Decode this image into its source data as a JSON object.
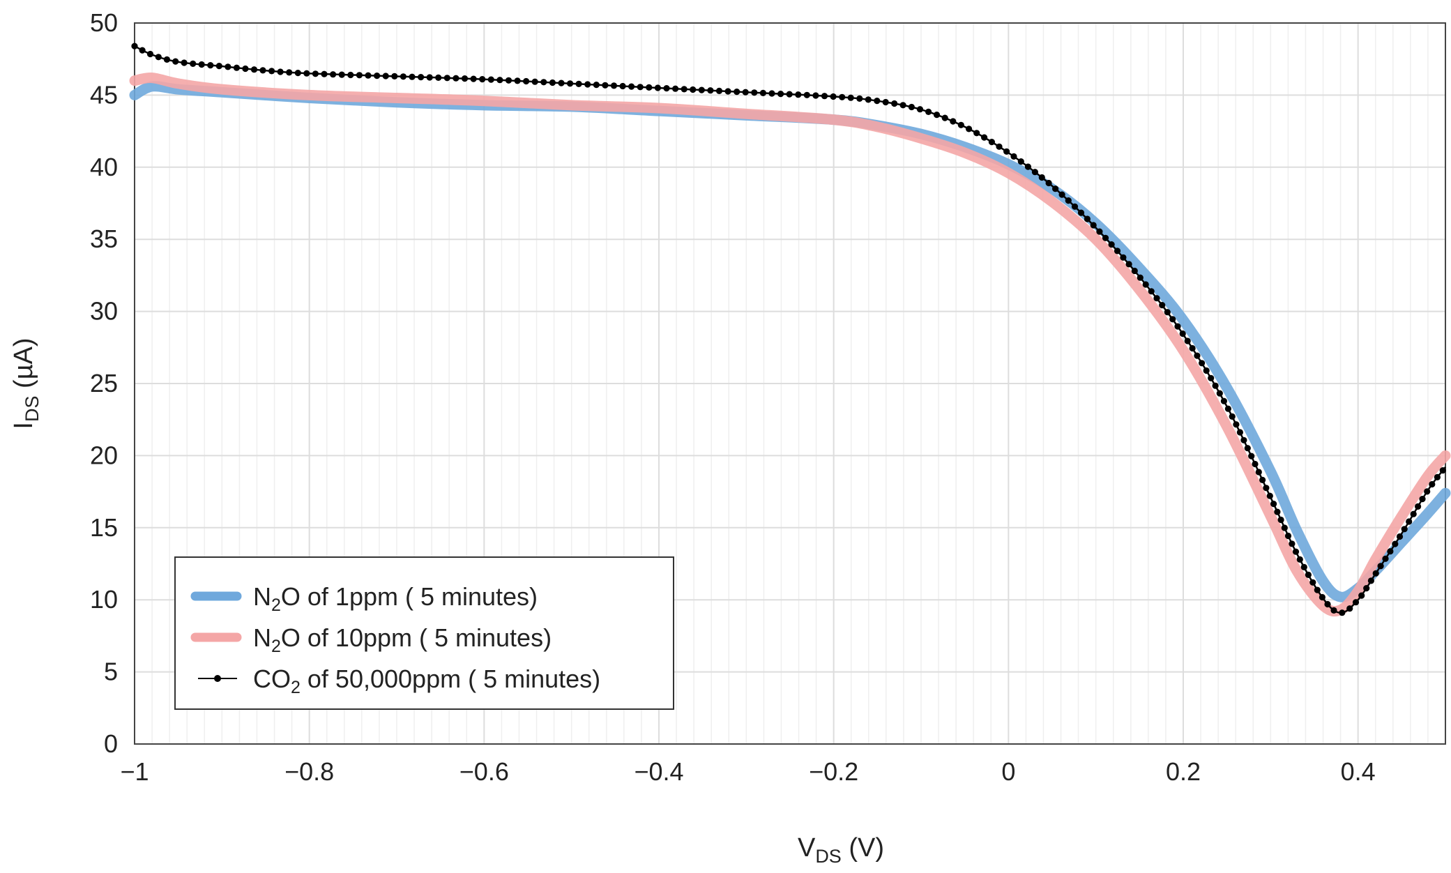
{
  "chart_data": {
    "type": "line",
    "xlabel": {
      "main": "V",
      "sub": "DS",
      "rest": " (V)"
    },
    "ylabel": {
      "main": "I",
      "sub": "DS",
      "rest": " (µA)"
    },
    "xlim": [
      -1,
      0.5
    ],
    "ylim": [
      0,
      50
    ],
    "x_ticks": [
      -1,
      -0.8,
      -0.6,
      -0.4,
      -0.2,
      0,
      0.2,
      0.4
    ],
    "x_tick_labels": [
      "−1",
      "−0.8",
      "−0.6",
      "−0.4",
      "−0.2",
      "0",
      "0.2",
      "0.4"
    ],
    "y_ticks": [
      0,
      5,
      10,
      15,
      20,
      25,
      30,
      35,
      40,
      45,
      50
    ],
    "y_tick_labels": [
      "0",
      "5",
      "10",
      "15",
      "20",
      "25",
      "30",
      "35",
      "40",
      "45",
      "50"
    ],
    "x_minor_step": 0.02,
    "grid": true,
    "legend_position": "lower-left",
    "series": [
      {
        "name": "N2O of 1ppm (5 minutes)",
        "legend": {
          "pre": "N",
          "sub": "2",
          "post": "O of 1ppm   (  5  minutes)"
        },
        "color": "#6fa8dc",
        "style": "thick",
        "points": [
          [
            -1,
            45.0
          ],
          [
            -0.98,
            45.6
          ],
          [
            -0.95,
            45.4
          ],
          [
            -0.9,
            45.2
          ],
          [
            -0.8,
            44.8
          ],
          [
            -0.7,
            44.5
          ],
          [
            -0.6,
            44.3
          ],
          [
            -0.5,
            44.2
          ],
          [
            -0.4,
            43.9
          ],
          [
            -0.3,
            43.6
          ],
          [
            -0.2,
            43.3
          ],
          [
            -0.15,
            42.9
          ],
          [
            -0.1,
            42.3
          ],
          [
            -0.05,
            41.4
          ],
          [
            0,
            40.2
          ],
          [
            0.05,
            38.5
          ],
          [
            0.1,
            36.1
          ],
          [
            0.15,
            33.0
          ],
          [
            0.2,
            29.4
          ],
          [
            0.25,
            24.7
          ],
          [
            0.3,
            18.9
          ],
          [
            0.33,
            14.8
          ],
          [
            0.36,
            11.3
          ],
          [
            0.38,
            10.2
          ],
          [
            0.4,
            10.8
          ],
          [
            0.42,
            12.0
          ],
          [
            0.45,
            14.0
          ],
          [
            0.48,
            16.0
          ],
          [
            0.5,
            17.4
          ]
        ]
      },
      {
        "name": "N2O of 10ppm (5 minutes)",
        "legend": {
          "pre": "N",
          "sub": "2",
          "post": "O of 10ppm (  5  minutes)"
        },
        "color": "#f4a6a6",
        "style": "thick",
        "points": [
          [
            -1,
            46.0
          ],
          [
            -0.98,
            46.2
          ],
          [
            -0.95,
            45.8
          ],
          [
            -0.9,
            45.4
          ],
          [
            -0.8,
            45.0
          ],
          [
            -0.7,
            44.8
          ],
          [
            -0.6,
            44.6
          ],
          [
            -0.5,
            44.3
          ],
          [
            -0.4,
            44.1
          ],
          [
            -0.3,
            43.7
          ],
          [
            -0.2,
            43.3
          ],
          [
            -0.15,
            42.8
          ],
          [
            -0.1,
            42.0
          ],
          [
            -0.05,
            41.0
          ],
          [
            0,
            39.6
          ],
          [
            0.05,
            37.6
          ],
          [
            0.1,
            35.0
          ],
          [
            0.15,
            31.5
          ],
          [
            0.2,
            27.3
          ],
          [
            0.25,
            22.0
          ],
          [
            0.3,
            15.8
          ],
          [
            0.33,
            12.0
          ],
          [
            0.36,
            9.6
          ],
          [
            0.38,
            9.3
          ],
          [
            0.4,
            10.6
          ],
          [
            0.42,
            12.8
          ],
          [
            0.45,
            15.8
          ],
          [
            0.48,
            18.6
          ],
          [
            0.5,
            20.0
          ]
        ]
      },
      {
        "name": "CO2 of 50,000ppm (5 minutes)",
        "legend": {
          "pre": "CO",
          "sub": "2",
          "post": " of 50,000ppm ( 5 minutes)"
        },
        "color": "#000000",
        "style": "markers",
        "points": [
          [
            -1,
            48.4
          ],
          [
            -0.98,
            47.8
          ],
          [
            -0.95,
            47.3
          ],
          [
            -0.9,
            47.0
          ],
          [
            -0.85,
            46.7
          ],
          [
            -0.8,
            46.5
          ],
          [
            -0.7,
            46.3
          ],
          [
            -0.6,
            46.1
          ],
          [
            -0.5,
            45.8
          ],
          [
            -0.4,
            45.5
          ],
          [
            -0.3,
            45.2
          ],
          [
            -0.2,
            44.9
          ],
          [
            -0.15,
            44.6
          ],
          [
            -0.1,
            44.0
          ],
          [
            -0.05,
            42.8
          ],
          [
            0,
            41.0
          ],
          [
            0.05,
            38.7
          ],
          [
            0.1,
            35.8
          ],
          [
            0.15,
            32.4
          ],
          [
            0.2,
            28.4
          ],
          [
            0.25,
            23.4
          ],
          [
            0.3,
            17.1
          ],
          [
            0.33,
            13.2
          ],
          [
            0.36,
            10.1
          ],
          [
            0.38,
            9.1
          ],
          [
            0.4,
            10.0
          ],
          [
            0.42,
            11.8
          ],
          [
            0.45,
            14.6
          ],
          [
            0.48,
            17.6
          ],
          [
            0.5,
            19.2
          ]
        ]
      }
    ]
  }
}
